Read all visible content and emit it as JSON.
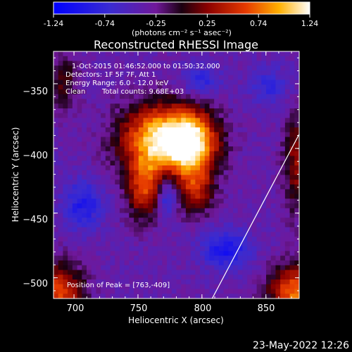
{
  "colorbar": {
    "ticks": [
      "-1.24",
      "-0.74",
      "-0.25",
      "0.25",
      "0.74",
      "1.24"
    ],
    "unit": "(photons cm⁻² s⁻¹ asec⁻²)",
    "min": -1.24,
    "max": 1.24
  },
  "chart_data": {
    "type": "heatmap",
    "title": "Reconstructed RHESSI Image",
    "xlabel": "Heliocentric X (arcsec)",
    "ylabel": "Heliocentric Y (arcsec)",
    "xlim": [
      684,
      876
    ],
    "ylim": [
      -516,
      -325
    ],
    "xticks": [
      700,
      750,
      800,
      850
    ],
    "yticks": [
      -350,
      -400,
      -450,
      -500
    ],
    "xtick_labels": [
      "700",
      "750",
      "800",
      "850"
    ],
    "ytick_labels": [
      "−350",
      "−400",
      "−450",
      "−500"
    ],
    "annotations": [
      "1-Oct-2015 01:46:52.000 to 01:50:32.000",
      "Detectors: 1F 5F 7F, Att 1",
      "Energy Range: 6.0 - 12.0 keV",
      "Clean",
      "Total counts: 9.68E+03"
    ],
    "peak_label": "Position of Peak = [763,-409]",
    "peak": [
      763,
      -409
    ],
    "limb_line": [
      [
        808,
        -516
      ],
      [
        876,
        -389
      ]
    ]
  },
  "footer": {
    "timestamp": "23-May-2022 12:26"
  }
}
